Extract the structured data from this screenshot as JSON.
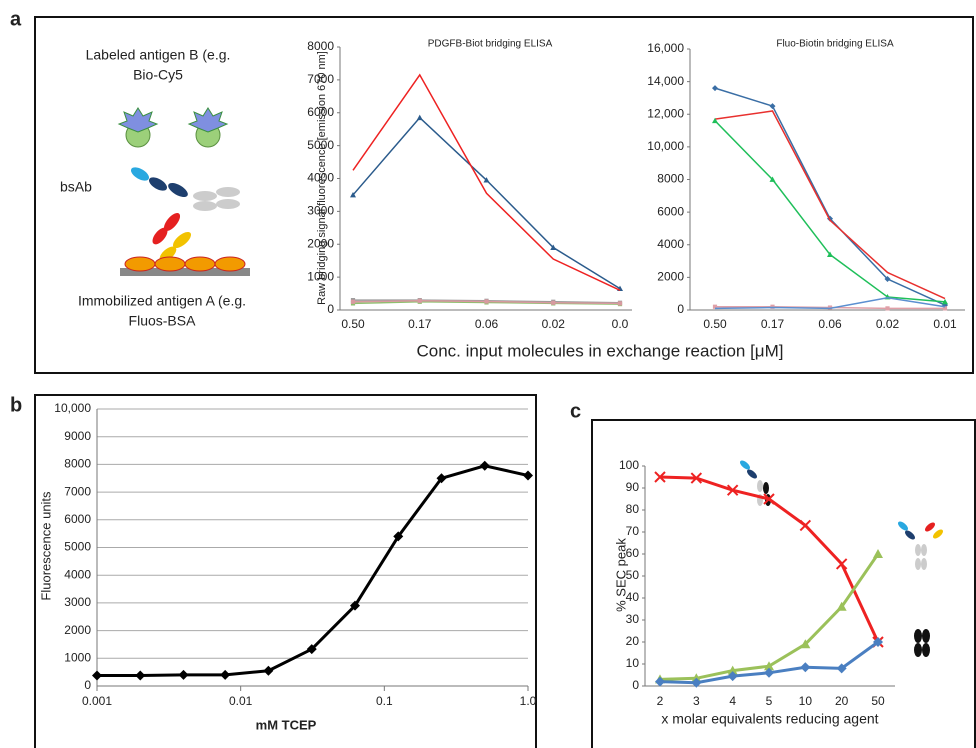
{
  "panel_labels": [
    "a",
    "b",
    "c"
  ],
  "diagram": {
    "antigen_b": [
      "Labeled antigen B (e.g.",
      "Bio-Cy5"
    ],
    "bsab": "bsAb",
    "antigen_a": [
      "Immobilized antigen A (e.g.",
      "Fluos-BSA"
    ]
  },
  "panel_a_xlabel": "Conc. input molecules in exchange reaction [μM]",
  "chart_data": [
    {
      "type": "line",
      "title": "PDGFB-Biot bridging ELISA",
      "ylabel": "Raw bridging signal fluorescence [emission 670 nm]",
      "categories": [
        "0.50",
        "0.17",
        "0.06",
        "0.02",
        "0.0"
      ],
      "series": [
        {
          "color": "#2b5b8c",
          "marker": "triangle",
          "values": [
            3500,
            5850,
            3950,
            1900,
            650
          ]
        },
        {
          "color": "#ee2222",
          "marker": "none",
          "values": [
            4250,
            7150,
            3550,
            1550,
            600
          ]
        },
        {
          "color": "#9a9a9a",
          "marker": "square",
          "values": [
            300,
            300,
            280,
            250,
            220
          ]
        },
        {
          "color": "#8fbf6f",
          "marker": "square",
          "values": [
            200,
            250,
            230,
            200,
            180
          ]
        },
        {
          "color": "#d89aa0",
          "marker": "square",
          "values": [
            250,
            280,
            260,
            220,
            200
          ]
        }
      ],
      "ylim": [
        0,
        8000
      ],
      "yticks": [
        0,
        1000,
        2000,
        3000,
        4000,
        5000,
        6000,
        7000,
        8000
      ],
      "grid": false
    },
    {
      "type": "line",
      "title": "Fluo-Biotin bridging ELISA",
      "categories": [
        "0.50",
        "0.17",
        "0.06",
        "0.02",
        "0.01"
      ],
      "series": [
        {
          "color": "#3a6ea5",
          "marker": "diamond",
          "values": [
            13600,
            12500,
            5600,
            1900,
            300
          ]
        },
        {
          "color": "#e8302e",
          "marker": "none",
          "values": [
            11700,
            12200,
            5500,
            2300,
            700
          ]
        },
        {
          "color": "#1fbf5a",
          "marker": "triangle",
          "values": [
            11600,
            8000,
            3400,
            800,
            500
          ]
        },
        {
          "color": "#e0a0a8",
          "marker": "square",
          "values": [
            200,
            200,
            150,
            100,
            100
          ]
        },
        {
          "color": "#5b8fd0",
          "marker": "none",
          "values": [
            100,
            150,
            100,
            750,
            200
          ]
        }
      ],
      "ylim": [
        0,
        16000
      ],
      "yticks": [
        0,
        2000,
        4000,
        6000,
        8000,
        {
          "value": 10000,
          "label": "10,000"
        },
        {
          "value": 12000,
          "label": "12,000"
        },
        {
          "value": 14000,
          "label": "14,000"
        },
        {
          "value": 16000,
          "label": "16,000"
        }
      ],
      "grid": false
    },
    {
      "type": "line",
      "xlabel": "mM TCEP",
      "ylabel": "Fluorescence units",
      "xlog": true,
      "x": [
        0.001,
        0.002,
        0.004,
        0.0078,
        0.0156,
        0.03125,
        0.0625,
        0.125,
        0.25,
        0.5,
        1.0
      ],
      "series": [
        {
          "color": "#000000",
          "marker": "diamond",
          "values": [
            380,
            380,
            400,
            400,
            550,
            1330,
            2900,
            5400,
            7500,
            7950,
            7600
          ]
        }
      ],
      "xlim": [
        0.001,
        1
      ],
      "xticks": [
        0.001,
        0.01,
        0.1,
        {
          "value": 1,
          "label": "1.0"
        }
      ],
      "ylim": [
        0,
        10000
      ],
      "yticks": [
        0,
        1000,
        2000,
        3000,
        4000,
        5000,
        6000,
        7000,
        8000,
        9000,
        {
          "value": 10000,
          "label": "10,000"
        }
      ],
      "grid": true
    },
    {
      "type": "line",
      "xlabel": "x molar equivalents reducing agent",
      "ylabel": "% SEC peak",
      "categories": [
        "2",
        "3",
        "4",
        "5",
        "10",
        "20",
        "50"
      ],
      "series": [
        {
          "color": "#ee2222",
          "marker": "x",
          "values": [
            95,
            94.5,
            89,
            85,
            73,
            55.5,
            20
          ]
        },
        {
          "color": "#9bc15a",
          "marker": "triangle",
          "values": [
            3,
            3.5,
            7,
            9,
            19,
            36,
            60
          ]
        },
        {
          "color": "#4a7fc1",
          "marker": "diamond",
          "values": [
            2,
            1.5,
            4.5,
            6,
            8.5,
            8,
            20
          ]
        }
      ],
      "ylim": [
        0,
        100
      ],
      "yticks": [
        0,
        10,
        20,
        30,
        40,
        50,
        60,
        70,
        80,
        90,
        100
      ],
      "grid": false
    }
  ]
}
